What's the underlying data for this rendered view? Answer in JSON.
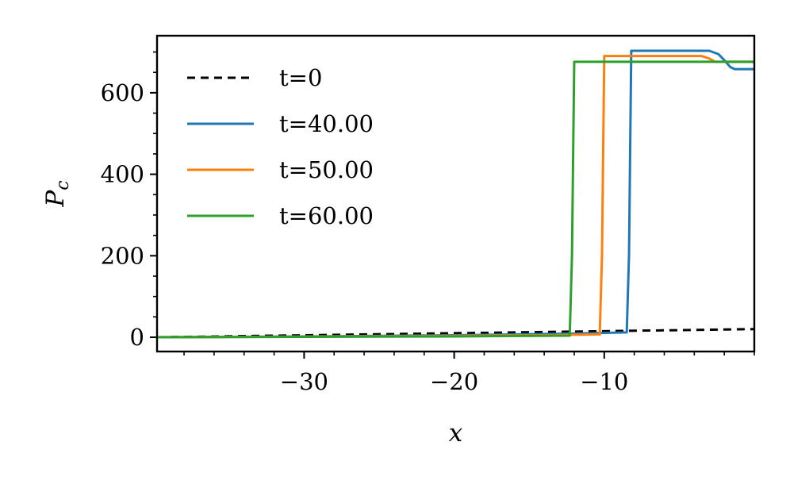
{
  "chart_data": {
    "type": "line",
    "title": "",
    "xlabel": "x",
    "ylabel_main": "P",
    "ylabel_sub": "c",
    "xlim": [
      -39.8,
      0
    ],
    "ylim": [
      -35,
      740
    ],
    "x_ticks": [
      -30,
      -20,
      -10
    ],
    "x_tick_labels": [
      "−30",
      "−20",
      "−10"
    ],
    "x_minor_step": 2,
    "y_ticks": [
      0,
      200,
      400,
      600
    ],
    "y_tick_labels": [
      "0",
      "200",
      "400",
      "600"
    ],
    "y_minor_step": 50,
    "grid": false,
    "legend_position": "upper-left",
    "series": [
      {
        "name": "t=0",
        "color": "#000000",
        "dashed": true,
        "points": [
          [
            -39.8,
            0
          ],
          [
            0,
            20
          ]
        ]
      },
      {
        "name": "t=40.00",
        "color": "#1f77b4",
        "dashed": false,
        "points": [
          [
            -39.8,
            0
          ],
          [
            -30,
            2
          ],
          [
            -20,
            5
          ],
          [
            -12,
            9
          ],
          [
            -8.5,
            12
          ],
          [
            -8.35,
            200
          ],
          [
            -8.2,
            703
          ],
          [
            -3.0,
            703
          ],
          [
            -2.4,
            695
          ],
          [
            -2.0,
            680
          ],
          [
            -1.6,
            663
          ],
          [
            -1.3,
            658
          ],
          [
            0,
            658
          ]
        ]
      },
      {
        "name": "t=50.00",
        "color": "#ff7f0e",
        "dashed": false,
        "points": [
          [
            -39.8,
            0
          ],
          [
            -30,
            1.5
          ],
          [
            -20,
            3.5
          ],
          [
            -14,
            5
          ],
          [
            -10.3,
            7
          ],
          [
            -10.15,
            200
          ],
          [
            -10.0,
            690
          ],
          [
            -3.5,
            690
          ],
          [
            -3.0,
            684
          ],
          [
            -2.6,
            676
          ],
          [
            0,
            676
          ]
        ]
      },
      {
        "name": "t=60.00",
        "color": "#2ca02c",
        "dashed": false,
        "points": [
          [
            -39.8,
            0
          ],
          [
            -30,
            1
          ],
          [
            -20,
            2
          ],
          [
            -12.3,
            4
          ],
          [
            -12.15,
            200
          ],
          [
            -12.0,
            676
          ],
          [
            0,
            676
          ]
        ]
      }
    ]
  }
}
